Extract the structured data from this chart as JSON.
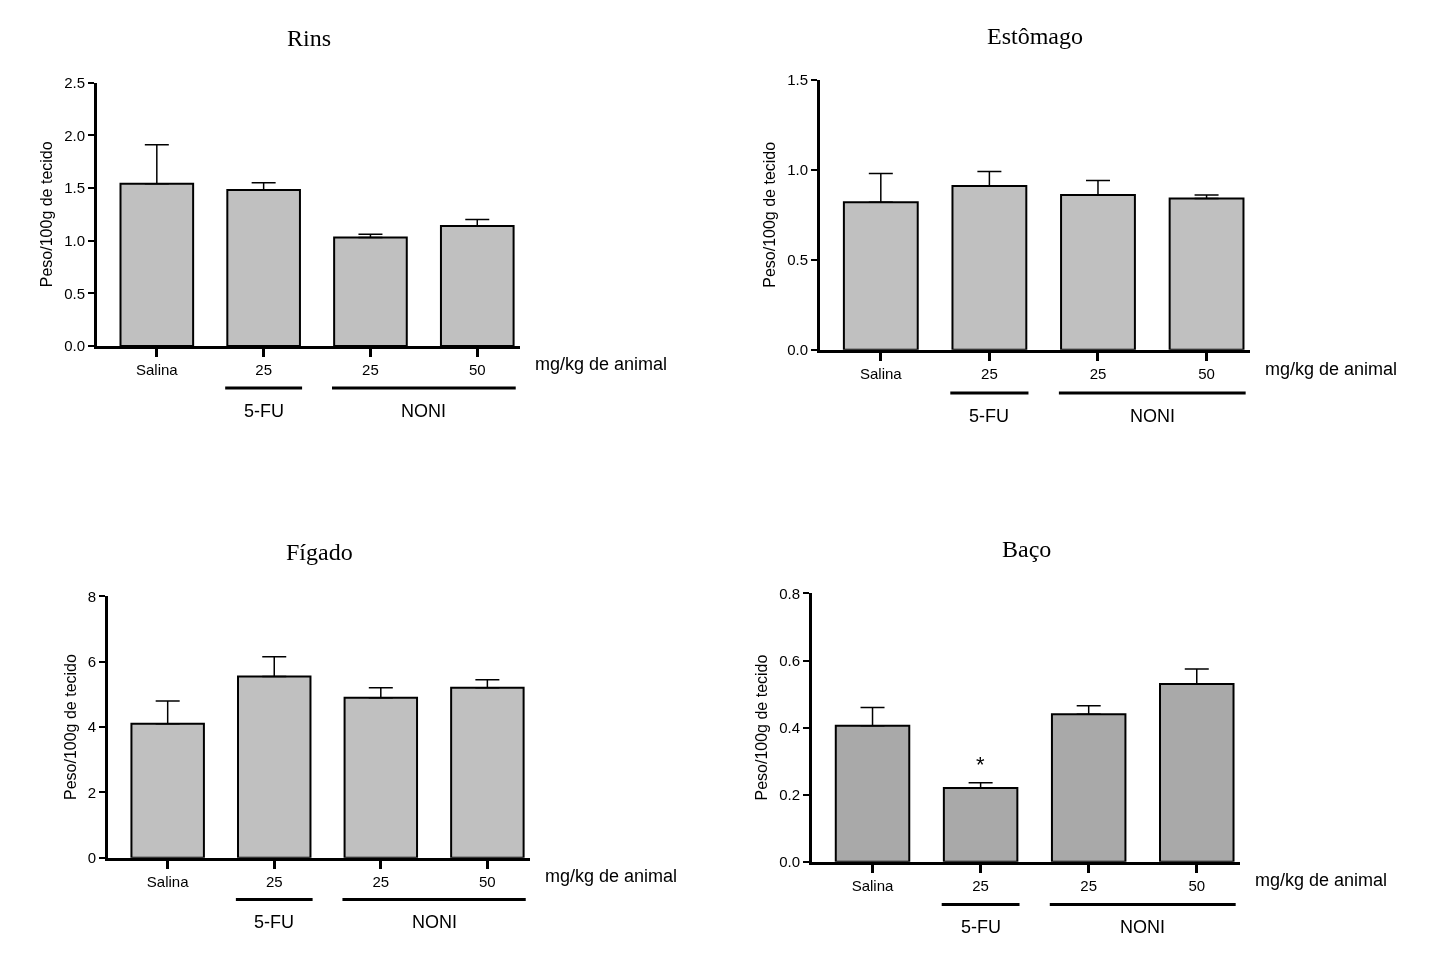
{
  "chart_data": [
    {
      "type": "bar",
      "title": "Rins",
      "ylabel": "Peso/100g de tecido",
      "categories": [
        "Salina",
        "25",
        "25",
        "50"
      ],
      "values": [
        1.54,
        1.48,
        1.03,
        1.14
      ],
      "errors": [
        [
          1.54,
          1.91
        ],
        [
          1.48,
          1.55
        ],
        [
          1.03,
          1.06
        ],
        [
          1.14,
          1.2
        ]
      ],
      "color": "#c0c0c0",
      "ylim": [
        0,
        2.5
      ],
      "yticks": [
        {
          "value": 0,
          "label": "0.0"
        },
        0.5,
        {
          "value": 1,
          "label": "1.0"
        },
        1.5,
        {
          "value": 2,
          "label": "2.0"
        },
        2.5
      ],
      "annotations": [
        "mg/kg de animal",
        "5-FU",
        "NONI"
      ]
    },
    {
      "type": "bar",
      "title": "Estômago",
      "ylabel": "Peso/100g de tecido",
      "categories": [
        "Salina",
        "25",
        "25",
        "50"
      ],
      "values": [
        0.82,
        0.91,
        0.86,
        0.84
      ],
      "errors": [
        [
          0.82,
          0.98
        ],
        [
          0.91,
          0.99
        ],
        [
          0.86,
          0.94
        ],
        [
          0.84,
          0.86
        ]
      ],
      "color": "#c0c0c0",
      "ylim": [
        0,
        1.5
      ],
      "yticks": [
        {
          "value": 0,
          "label": "0.0"
        },
        0.5,
        {
          "value": 1,
          "label": "1.0"
        },
        1.5
      ],
      "annotations": [
        "mg/kg de animal",
        "5-FU",
        "NONI"
      ]
    },
    {
      "type": "bar",
      "title": "Fígado",
      "ylabel": "Peso/100g de tecido",
      "categories": [
        "Salina",
        "25",
        "25",
        "50"
      ],
      "values": [
        4.1,
        5.55,
        4.9,
        5.2
      ],
      "errors": [
        [
          4.1,
          4.8
        ],
        [
          5.55,
          6.15
        ],
        [
          4.9,
          5.2
        ],
        [
          5.2,
          5.45
        ]
      ],
      "color": "#c0c0c0",
      "ylim": [
        0,
        8
      ],
      "yticks": [
        0,
        2,
        4,
        6,
        8
      ],
      "annotations": [
        "mg/kg de animal",
        "5-FU",
        "NONI"
      ]
    },
    {
      "type": "bar",
      "title": "Baço",
      "ylabel": "Peso/100g de tecido",
      "categories": [
        "Salina",
        "25",
        "25",
        "50"
      ],
      "values": [
        0.405,
        0.22,
        0.44,
        0.53
      ],
      "errors": [
        [
          0.405,
          0.46
        ],
        [
          0.22,
          0.235
        ],
        [
          0.44,
          0.465
        ],
        [
          0.53,
          0.575
        ]
      ],
      "color": "#a9a9a9",
      "ylim": [
        0,
        0.8
      ],
      "yticks": [
        {
          "value": 0,
          "label": "0.0"
        },
        0.2,
        0.4,
        0.6,
        0.8
      ],
      "annotations": [
        "mg/kg de animal",
        "5-FU",
        "NONI",
        "*"
      ]
    }
  ]
}
